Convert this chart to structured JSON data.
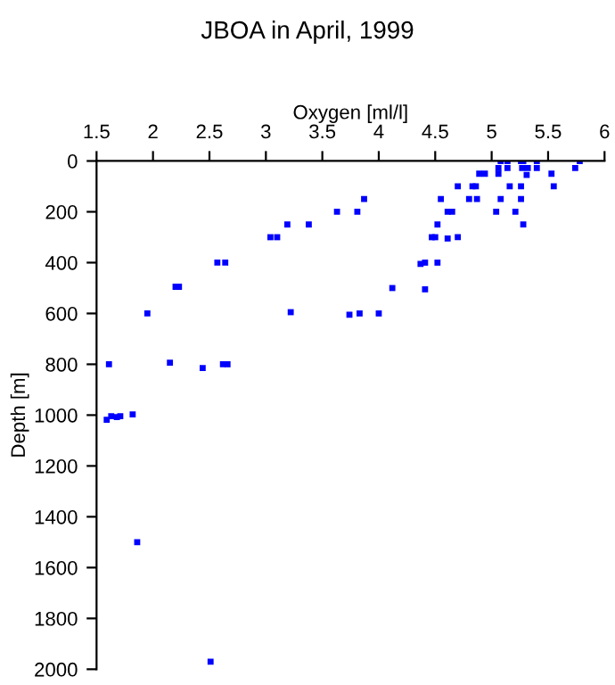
{
  "chart_data": {
    "type": "scatter",
    "title": "JBOA in April, 1999",
    "xlabel": "Oxygen [ml/l]",
    "ylabel": "Depth [m]",
    "xlim": [
      1.5,
      6
    ],
    "xticks": [
      1.5,
      2,
      2.5,
      3,
      3.5,
      4,
      4.5,
      5,
      5.5,
      6
    ],
    "ylim": [
      2000,
      0
    ],
    "yticks": [
      0,
      200,
      400,
      600,
      800,
      1000,
      1200,
      1400,
      1600,
      1800,
      2000
    ],
    "marker": "square",
    "grid": false,
    "series": [
      {
        "color": "#0000ff",
        "x": [
          5.08,
          5.14,
          5.26,
          5.28,
          5.4,
          5.78,
          5.06,
          5.14,
          5.27,
          5.32,
          5.4,
          5.74,
          4.89,
          4.94,
          5.06,
          5.31,
          5.53,
          4.7,
          4.83,
          4.86,
          5.16,
          5.26,
          5.55,
          3.87,
          4.55,
          4.8,
          4.87,
          5.08,
          5.26,
          3.63,
          3.81,
          4.61,
          4.65,
          5.04,
          5.21,
          3.19,
          3.38,
          4.52,
          5.28,
          3.04,
          3.1,
          4.47,
          4.5,
          4.61,
          4.7,
          2.57,
          2.64,
          4.37,
          4.41,
          4.52,
          2.2,
          2.23,
          4.12,
          4.41,
          1.95,
          3.22,
          3.74,
          3.83,
          4.0,
          1.61,
          2.15,
          2.44,
          2.62,
          2.66,
          1.59,
          1.63,
          1.68,
          1.71,
          1.82,
          1.86,
          2.51
        ],
        "values": [
          0,
          0,
          0,
          0,
          0,
          0,
          28,
          28,
          28,
          28,
          28,
          28,
          50,
          50,
          50,
          55,
          50,
          100,
          100,
          100,
          100,
          100,
          100,
          150,
          150,
          150,
          150,
          150,
          150,
          200,
          200,
          200,
          200,
          200,
          200,
          250,
          250,
          250,
          250,
          300,
          300,
          300,
          300,
          305,
          300,
          400,
          400,
          405,
          400,
          400,
          495,
          495,
          500,
          505,
          600,
          595,
          605,
          600,
          600,
          800,
          794,
          815,
          800,
          800,
          1018,
          1004,
          1008,
          1004,
          997,
          1500,
          1970
        ]
      }
    ]
  }
}
